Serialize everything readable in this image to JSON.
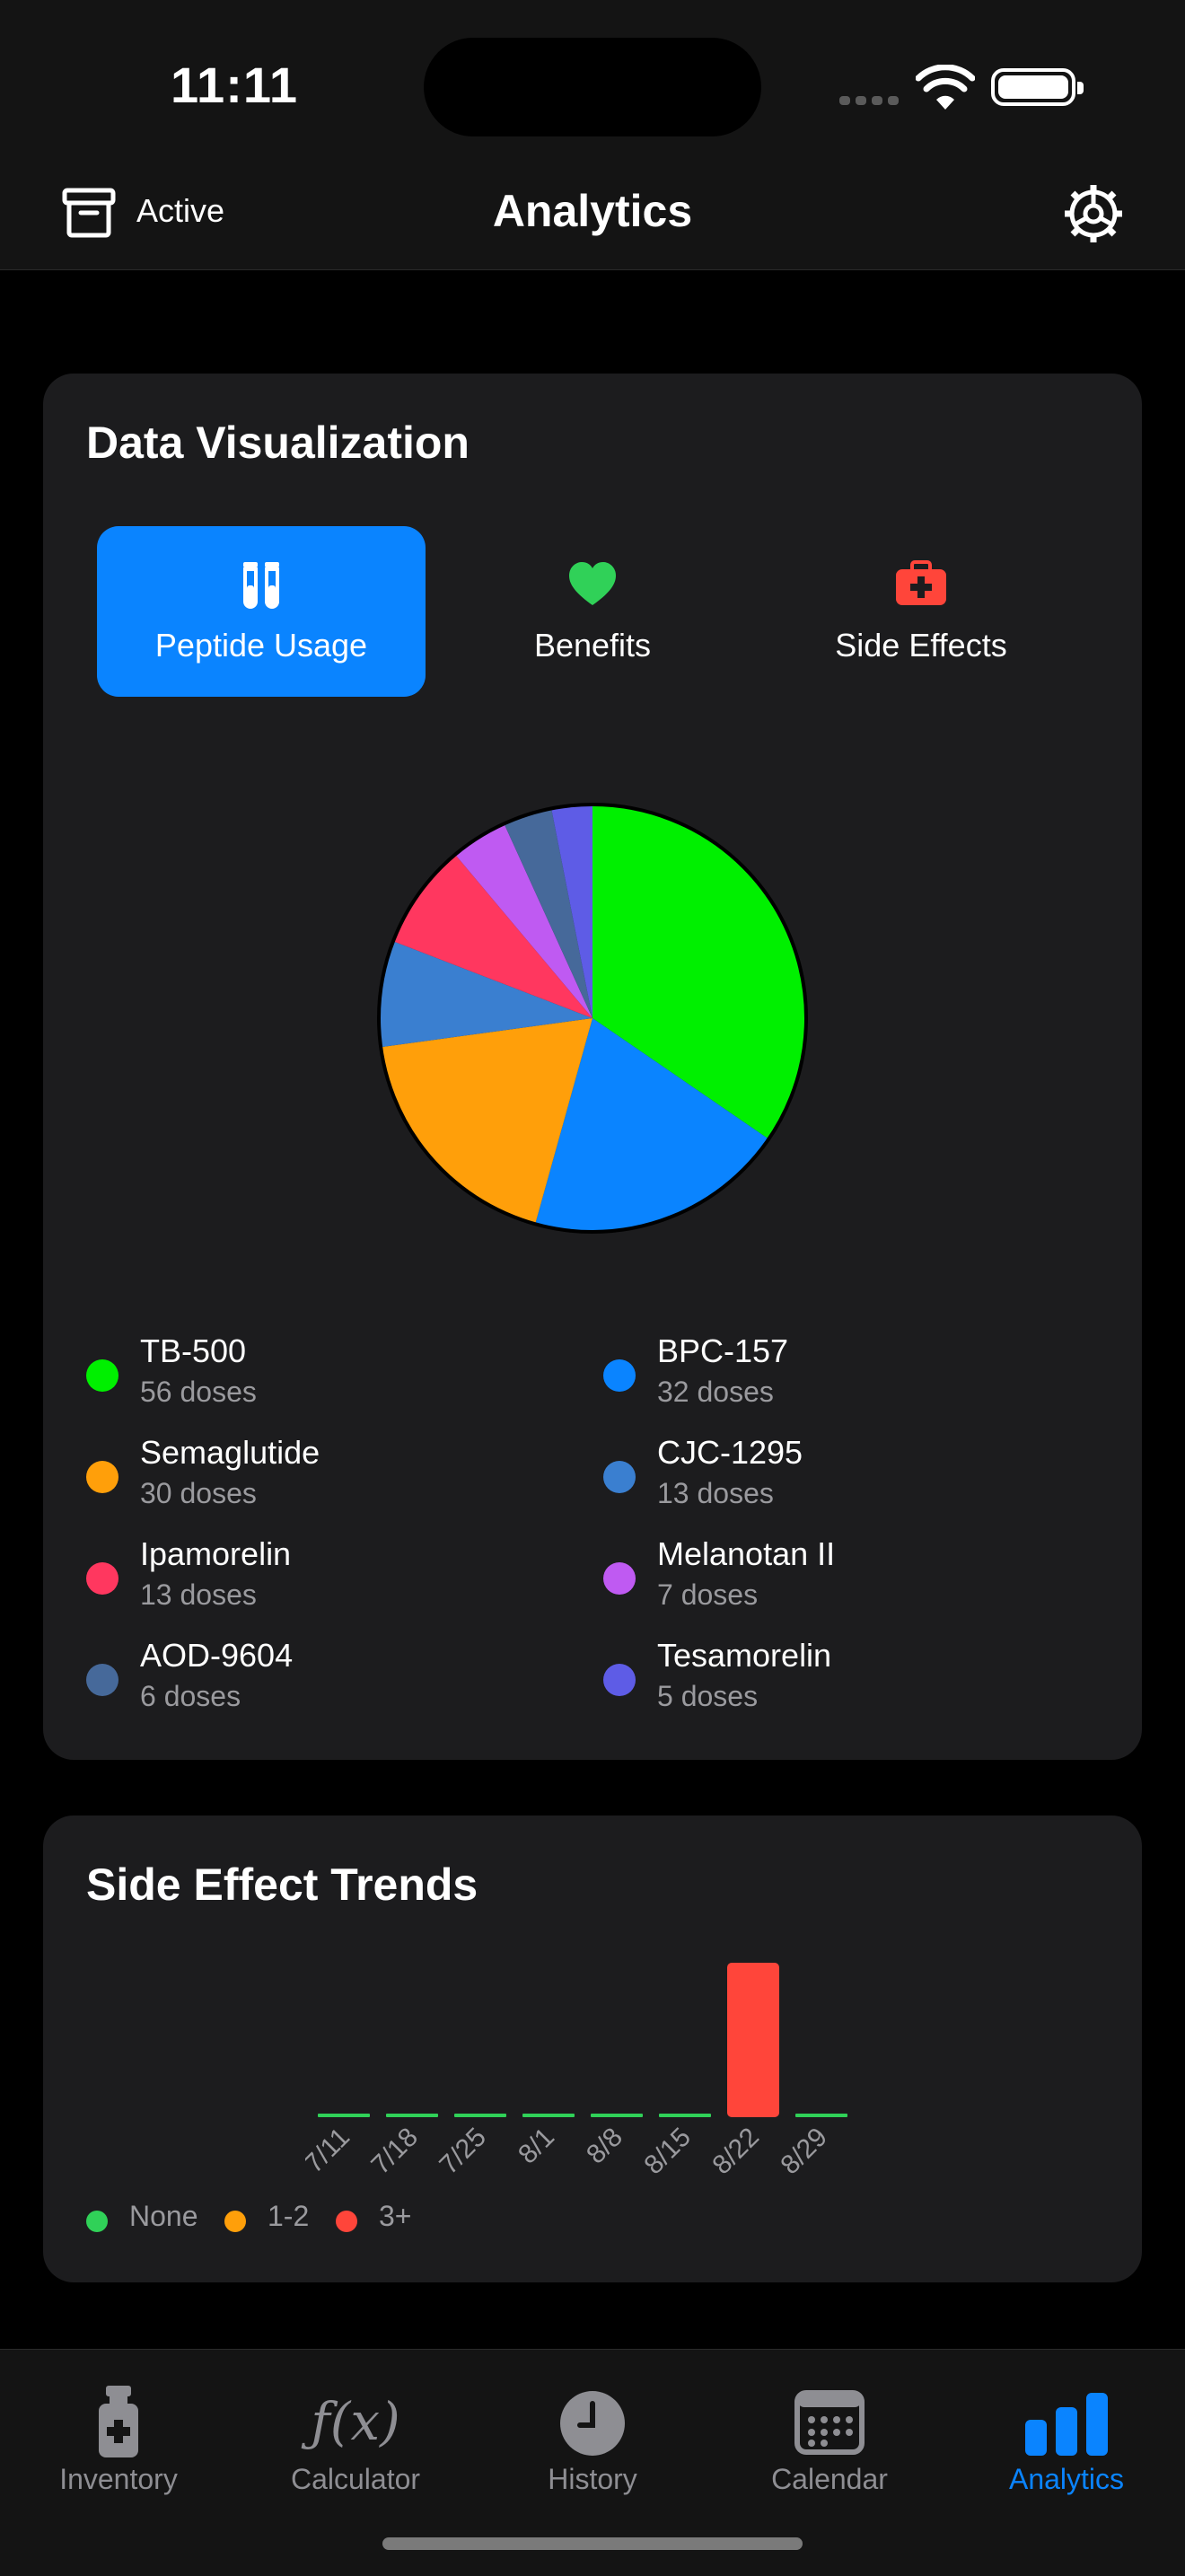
{
  "status": {
    "time": "11:11"
  },
  "nav": {
    "left_label": "Active",
    "title": "Analytics"
  },
  "viz": {
    "title": "Data Visualization",
    "segments": [
      {
        "label": "Peptide Usage",
        "icon": "test-tubes-icon",
        "selected": true
      },
      {
        "label": "Benefits",
        "icon": "heart-icon",
        "selected": false
      },
      {
        "label": "Side Effects",
        "icon": "medical-kit-icon",
        "selected": false
      }
    ]
  },
  "legend": [
    {
      "name": "TB-500",
      "sub": "56 doses",
      "color": "#00f000"
    },
    {
      "name": "BPC-157",
      "sub": "32 doses",
      "color": "#0a84ff"
    },
    {
      "name": "Semaglutide",
      "sub": "30 doses",
      "color": "#ff9f0a"
    },
    {
      "name": "CJC-1295",
      "sub": "13 doses",
      "color": "#3a7fd0"
    },
    {
      "name": "Ipamorelin",
      "sub": "13 doses",
      "color": "#ff375f"
    },
    {
      "name": "Melanotan II",
      "sub": "7 doses",
      "color": "#bf5af2"
    },
    {
      "name": "AOD-9604",
      "sub": "6 doses",
      "color": "#46699a"
    },
    {
      "name": "Tesamorelin",
      "sub": "5 doses",
      "color": "#5e5ce6"
    }
  ],
  "chart_data": [
    {
      "type": "pie",
      "categories": [
        "TB-500",
        "BPC-157",
        "Semaglutide",
        "CJC-1295",
        "Ipamorelin",
        "Melanotan II",
        "AOD-9604",
        "Tesamorelin"
      ],
      "values": [
        56,
        32,
        30,
        13,
        13,
        7,
        6,
        5
      ],
      "colors": [
        "#00f000",
        "#0a84ff",
        "#ff9f0a",
        "#3a7fd0",
        "#ff375f",
        "#bf5af2",
        "#46699a",
        "#5e5ce6"
      ],
      "legend_placement": "bottom"
    },
    {
      "type": "bar",
      "title": "Side Effect Trends",
      "categories": [
        "7/11",
        "7/18",
        "7/25",
        "8/1",
        "8/8",
        "8/15",
        "8/22",
        "8/29"
      ],
      "values": [
        0,
        0,
        0,
        0,
        0,
        0,
        3,
        0
      ],
      "bar_colors": [
        "#30d158",
        "#30d158",
        "#30d158",
        "#30d158",
        "#30d158",
        "#30d158",
        "#ff453a",
        "#30d158"
      ],
      "ylim": [
        0,
        3
      ],
      "legend": [
        {
          "label": "None",
          "color": "#30d158"
        },
        {
          "label": "1-2",
          "color": "#ff9f0a"
        },
        {
          "label": "3+",
          "color": "#ff453a"
        }
      ],
      "legend_placement": "bottom-left",
      "grid": false
    }
  ],
  "tabs": [
    {
      "label": "Inventory",
      "icon": "vial-icon",
      "active": false
    },
    {
      "label": "Calculator",
      "icon": "function-icon",
      "active": false
    },
    {
      "label": "History",
      "icon": "clock-icon",
      "active": false
    },
    {
      "label": "Calendar",
      "icon": "calendar-icon",
      "active": false
    },
    {
      "label": "Analytics",
      "icon": "bar-chart-icon",
      "active": true
    }
  ]
}
